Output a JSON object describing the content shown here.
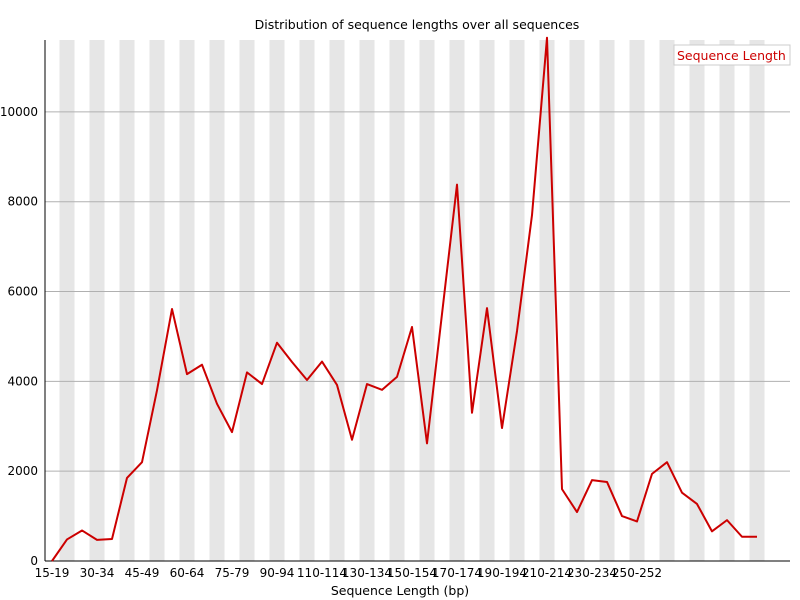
{
  "chart_data": {
    "type": "line",
    "title": "Distribution of sequence lengths over all sequences",
    "xlabel": "Sequence Length (bp)",
    "ylabel": "",
    "ylim": [
      0,
      11600
    ],
    "yticks": [
      0,
      2000,
      4000,
      6000,
      8000,
      10000
    ],
    "x_tick_labels": [
      "15-19",
      "30-34",
      "45-49",
      "60-64",
      "75-79",
      "90-94",
      "110-114",
      "130-134",
      "150-154",
      "170-174",
      "190-194",
      "210-214",
      "230-234",
      "250-252"
    ],
    "grid": "horizontal lines with alternating vertical gray bands",
    "legend": "top-right",
    "colors": {
      "line": "#cc0000",
      "band": "#e6e6e6",
      "grid": "#b0b0b0"
    },
    "series": [
      {
        "name": "Sequence Length",
        "values": [
          0,
          480,
          680,
          470,
          490,
          1850,
          2200,
          3800,
          5610,
          4160,
          4370,
          3500,
          2870,
          4200,
          3940,
          4860,
          4430,
          4030,
          4440,
          3920,
          2700,
          3940,
          3810,
          4100,
          5210,
          2620,
          5500,
          8380,
          3300,
          5630,
          2960,
          5120,
          7700,
          11650,
          1600,
          1090,
          1800,
          1760,
          1000,
          880,
          1940,
          2200,
          1520,
          1270,
          660,
          910,
          540,
          540
        ]
      }
    ]
  }
}
